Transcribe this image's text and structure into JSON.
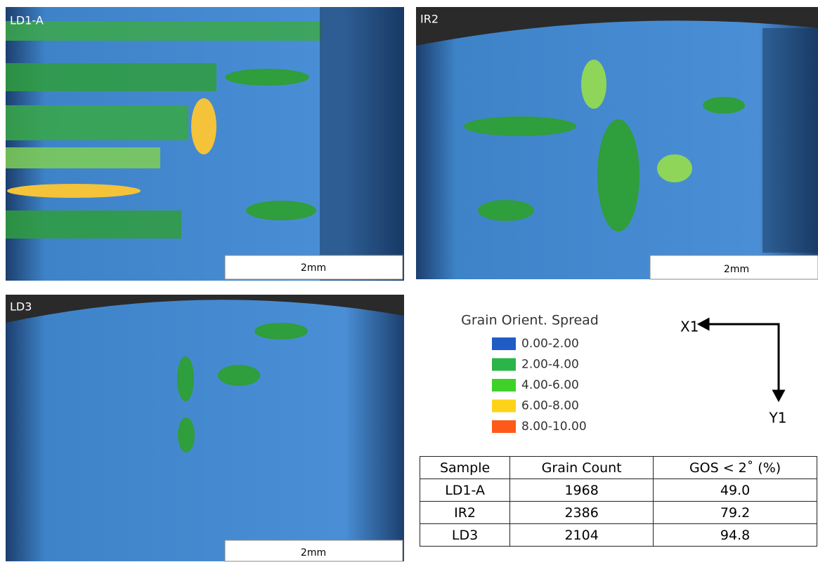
{
  "panels": [
    {
      "label": "LD1-A",
      "scale": "2mm"
    },
    {
      "label": "IR2",
      "scale": "2mm"
    },
    {
      "label": "LD3",
      "scale": "2mm"
    }
  ],
  "legend": {
    "title": "Grain Orient. Spread",
    "items": [
      {
        "label": "0.00-2.00",
        "color": "#1f5cc4"
      },
      {
        "label": "2.00-4.00",
        "color": "#2bb548"
      },
      {
        "label": "4.00-6.00",
        "color": "#3fd12a"
      },
      {
        "label": "6.00-8.00",
        "color": "#ffd21a"
      },
      {
        "label": "8.00-10.00",
        "color": "#ff5a1a"
      }
    ]
  },
  "axes": {
    "x": "X1",
    "y": "Y1"
  },
  "table": {
    "header": [
      "Sample",
      "Grain Count",
      "GOS < 2˚  (%)"
    ],
    "rows": [
      [
        "LD1-A",
        "1968",
        "49.0"
      ],
      [
        "IR2",
        "2386",
        "79.2"
      ],
      [
        "LD3",
        "2104",
        "94.8"
      ]
    ]
  }
}
